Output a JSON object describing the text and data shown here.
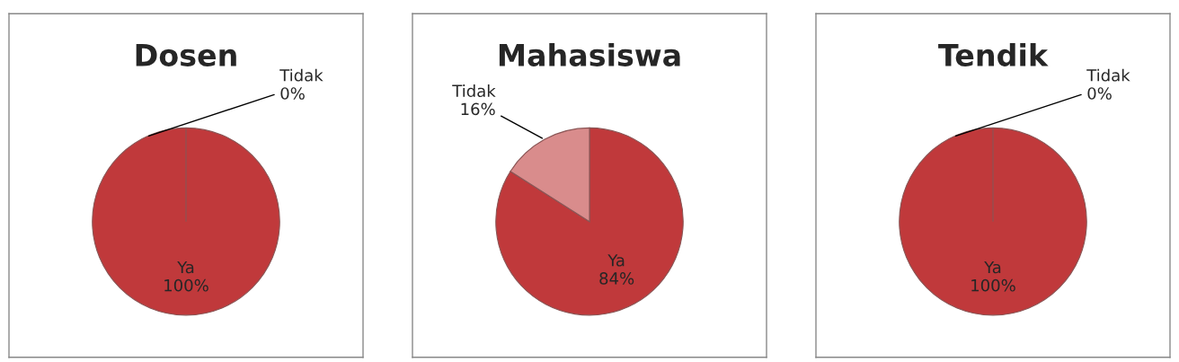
{
  "chart_data": [
    {
      "type": "pie",
      "title": "Dosen",
      "categories": [
        "Ya",
        "Tidak"
      ],
      "values": [
        100,
        0
      ],
      "value_labels": [
        "100%",
        "0%"
      ],
      "colors": [
        "#c0393b",
        "#d98c8c"
      ]
    },
    {
      "type": "pie",
      "title": "Mahasiswa",
      "categories": [
        "Ya",
        "Tidak"
      ],
      "values": [
        84,
        16
      ],
      "value_labels": [
        "84%",
        "16%"
      ],
      "colors": [
        "#c0393b",
        "#d98c8c"
      ]
    },
    {
      "type": "pie",
      "title": "Tendik",
      "categories": [
        "Ya",
        "Tidak"
      ],
      "values": [
        100,
        0
      ],
      "value_labels": [
        "100%",
        "0%"
      ],
      "colors": [
        "#c0393b",
        "#d98c8c"
      ]
    }
  ]
}
